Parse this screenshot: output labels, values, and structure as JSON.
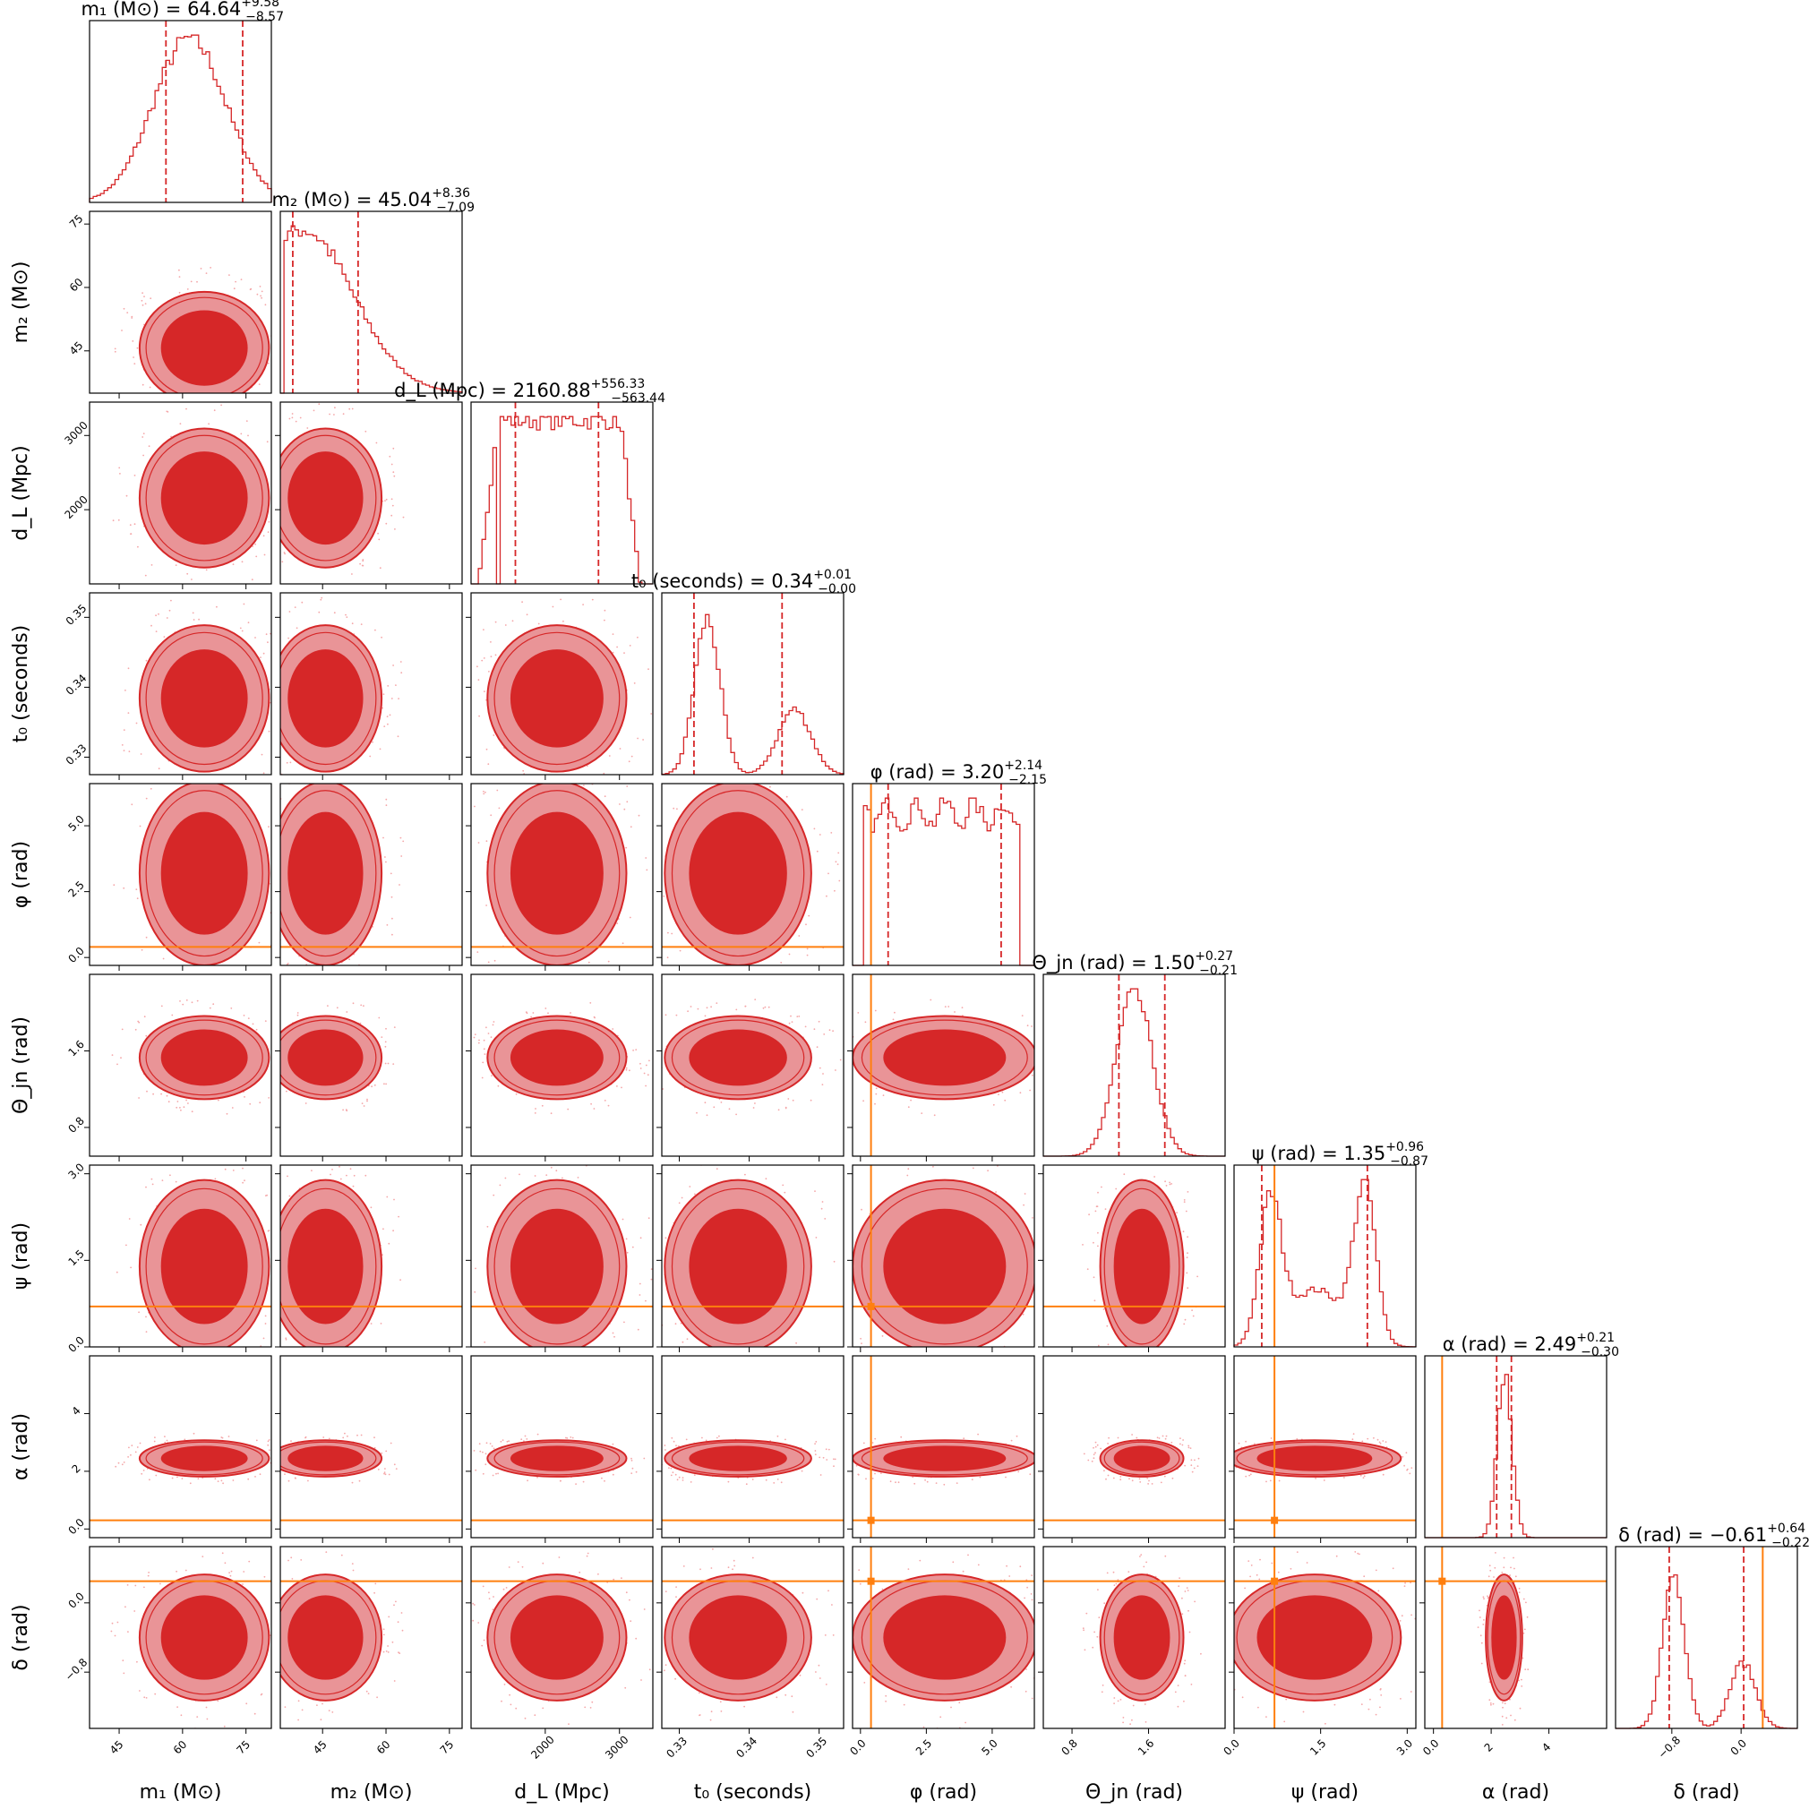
{
  "colors": {
    "posterior": "#d62728",
    "level_inner": "#d62728",
    "level_outer": "#e99497",
    "contour_line": "#d62728",
    "injection": "#ff7f0e",
    "sample_points": "#f4a6a8",
    "axes": "#000000"
  },
  "chart_data": {
    "type": "corner",
    "grid": false,
    "parameters": [
      {
        "key": "m1",
        "axis_label": "m₁ (M⊙)",
        "title_name": "m₁ (M⊙) = ",
        "median": "64.64",
        "plus": "+9.58",
        "minus": "−8.57",
        "range": [
          38,
          81
        ],
        "ticks": [
          45,
          60,
          75
        ],
        "tick_labels": [
          "45",
          "60",
          "75"
        ],
        "ci": [
          56.07,
          74.22
        ],
        "injection": null
      },
      {
        "key": "m2",
        "axis_label": "m₂ (M⊙)",
        "title_name": "m₂ (M⊙) = ",
        "median": "45.04",
        "plus": "+8.36",
        "minus": "−7.09",
        "range": [
          35,
          78
        ],
        "ticks": [
          45,
          60,
          75
        ],
        "tick_labels": [
          "45",
          "60",
          "75"
        ],
        "ci": [
          37.95,
          53.4
        ],
        "injection": null
      },
      {
        "key": "dL",
        "axis_label": "d_L (Mpc)",
        "title_name": "d_L (Mpc) = ",
        "median": "2160.88",
        "plus": "+556.33",
        "minus": "−563.44",
        "range": [
          1000,
          3450
        ],
        "ticks": [
          2000,
          3000
        ],
        "tick_labels": [
          "2000",
          "3000"
        ],
        "ci": [
          1597.44,
          2717.21
        ],
        "injection": null
      },
      {
        "key": "t0",
        "axis_label": "t₀ (seconds)",
        "title_name": "t₀ (seconds) = ",
        "median": "0.34",
        "plus": "+0.01",
        "minus": "−0.00",
        "range": [
          0.3275,
          0.3535
        ],
        "ticks": [
          0.33,
          0.34,
          0.35
        ],
        "tick_labels": [
          "0.33",
          "0.34",
          "0.35"
        ],
        "ci": [
          0.3321,
          0.3447
        ],
        "injection": null
      },
      {
        "key": "phi",
        "axis_label": "φ (rad)",
        "title_name": "φ (rad) = ",
        "median": "3.20",
        "plus": "+2.14",
        "minus": "−2.15",
        "range": [
          -0.3,
          6.6
        ],
        "ticks": [
          0,
          2.5,
          5
        ],
        "tick_labels": [
          "0.0",
          "2.5",
          "5.0"
        ],
        "ci": [
          1.05,
          5.34
        ],
        "injection": 0.4
      },
      {
        "key": "theta",
        "axis_label": "Θ_jn (rad)",
        "title_name": "Θ_jn (rad) = ",
        "median": "1.50",
        "plus": "+0.27",
        "minus": "−0.21",
        "range": [
          0.5,
          2.4
        ],
        "ticks": [
          0.8,
          1.6
        ],
        "tick_labels": [
          "0.8",
          "1.6"
        ],
        "ci": [
          1.29,
          1.77
        ],
        "injection": null
      },
      {
        "key": "psi",
        "axis_label": "ψ (rad)",
        "title_name": "ψ (rad) = ",
        "median": "1.35",
        "plus": "+0.96",
        "minus": "−0.87",
        "range": [
          0,
          3.15
        ],
        "ticks": [
          0,
          1.5,
          3
        ],
        "tick_labels": [
          "0.0",
          "1.5",
          "3.0"
        ],
        "ci": [
          0.48,
          2.31
        ],
        "injection": 0.7
      },
      {
        "key": "alpha",
        "axis_label": "α (rad)",
        "title_name": "α (rad) = ",
        "median": "2.49",
        "plus": "+0.21",
        "minus": "−0.30",
        "range": [
          -0.3,
          6.0
        ],
        "ticks": [
          0,
          2,
          4
        ],
        "tick_labels": [
          "0.0",
          "2",
          "4"
        ],
        "ci": [
          2.19,
          2.7
        ],
        "injection": 0.3
      },
      {
        "key": "delta",
        "axis_label": "δ (rad)",
        "title_name": "δ (rad) = ",
        "median": "−0.61",
        "plus": "+0.64",
        "minus": "−0.22",
        "range": [
          -1.45,
          0.65
        ],
        "ticks": [
          -0.8,
          0.0
        ],
        "tick_labels": [
          "−0.8",
          "0.0"
        ],
        "ci": [
          -0.83,
          0.03
        ],
        "injection": 0.25
      }
    ]
  }
}
